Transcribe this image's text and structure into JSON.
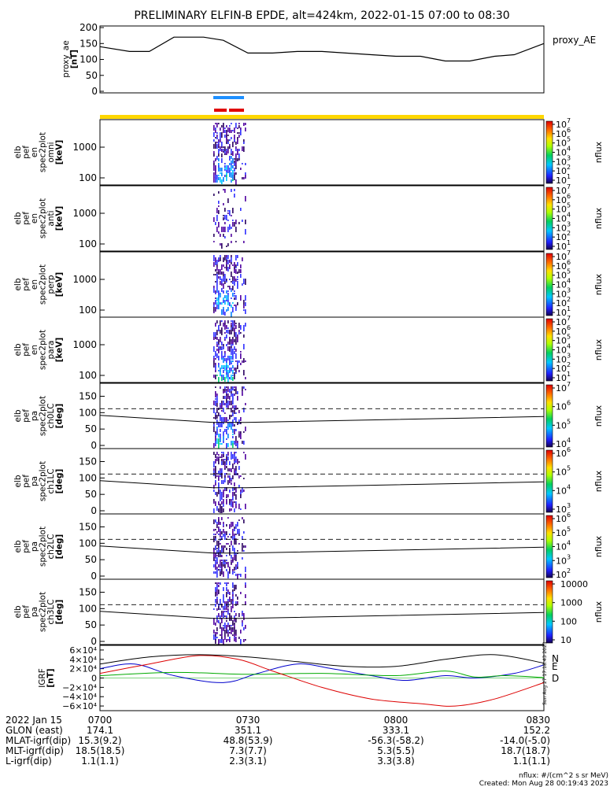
{
  "title": "PRELIMINARY ELFIN-B EPDE, alt=424km, 2022-01-15 07:00 to 08:30",
  "ae_panel": {
    "ylabel_lines": [
      "proxy_ae",
      "[nT]"
    ],
    "legend": "proxy_AE",
    "yticks": [
      "200",
      "150",
      "100",
      "50",
      "0"
    ]
  },
  "spec_panels": [
    {
      "ylabel_lines": [
        "elb",
        "pef",
        "en",
        "spec2plot",
        "omni",
        "[keV]"
      ],
      "yticks": [
        "1000",
        "100"
      ],
      "cbar_ticks": [
        "7",
        "6",
        "5",
        "4",
        "3",
        "2",
        "1"
      ]
    },
    {
      "ylabel_lines": [
        "elb",
        "pef",
        "en",
        "spec2plot",
        "anti",
        "[keV]"
      ],
      "yticks": [
        "1000",
        "100"
      ],
      "cbar_ticks": [
        "7",
        "6",
        "5",
        "4",
        "3",
        "2",
        "1"
      ]
    },
    {
      "ylabel_lines": [
        "elb",
        "pef",
        "en",
        "spec2plot",
        "perp",
        "[keV]"
      ],
      "yticks": [
        "1000",
        "100"
      ],
      "cbar_ticks": [
        "7",
        "6",
        "5",
        "4",
        "3",
        "2",
        "1"
      ]
    },
    {
      "ylabel_lines": [
        "elb",
        "pef",
        "en",
        "spec2plot",
        "para",
        "[keV]"
      ],
      "yticks": [
        "1000",
        "100"
      ],
      "cbar_ticks": [
        "7",
        "6",
        "5",
        "4",
        "3",
        "2",
        "1"
      ]
    }
  ],
  "pa_panels": [
    {
      "ylabel_lines": [
        "elb",
        "pef",
        "pa",
        "spec2plot",
        "ch0LC",
        "[deg]"
      ],
      "yticks": [
        "150",
        "100",
        "50",
        "0"
      ],
      "cbar_ticks": [
        "7",
        "6",
        "5",
        "4"
      ]
    },
    {
      "ylabel_lines": [
        "elb",
        "pef",
        "pa",
        "spec2plot",
        "ch1LC",
        "[deg]"
      ],
      "yticks": [
        "150",
        "100",
        "50",
        "0"
      ],
      "cbar_ticks": [
        "6",
        "5",
        "4",
        "3"
      ]
    },
    {
      "ylabel_lines": [
        "elb",
        "pef",
        "pa",
        "spec2plot",
        "ch2LC",
        "[deg]"
      ],
      "yticks": [
        "150",
        "100",
        "50",
        "0"
      ],
      "cbar_ticks": [
        "6",
        "5",
        "4",
        "3",
        "2"
      ]
    },
    {
      "ylabel_lines": [
        "elb",
        "pef",
        "pa",
        "spec2plot",
        "ch3LC",
        "[deg]"
      ],
      "yticks": [
        "150",
        "100",
        "50",
        "0"
      ],
      "cbar_ticks_plain": [
        "10000",
        "1000",
        "100",
        "10"
      ]
    }
  ],
  "cbar_label": "nflux",
  "igrf_panel": {
    "ylabel_lines": [
      "IGRF",
      "[nT]"
    ],
    "yticks": [
      "6×10⁴",
      "4×10⁴",
      "2×10⁴",
      "0",
      "−2×10⁴",
      "−4×10⁴",
      "−6×10⁴"
    ],
    "legend": [
      "N",
      "E",
      "D"
    ],
    "side_stamp": "Sun Aug 27 17:18:43 2023"
  },
  "footer": {
    "rows": [
      [
        "2022 Jan 15",
        "0700",
        "0730",
        "0800",
        "0830"
      ],
      [
        "GLON (east)",
        "174.1",
        "351.1",
        "333.1",
        "152.2"
      ],
      [
        "MLAT-igrf(dip)",
        "15.3(9.2)",
        "48.8(53.9)",
        "-56.3(-58.2)",
        "-14.0(-5.0)"
      ],
      [
        "MLT-igrf(dip)",
        "18.5(18.5)",
        "7.3(7.7)",
        "5.3(5.5)",
        "18.7(18.7)"
      ],
      [
        "L-igrf(dip)",
        "1.1(1.1)",
        "2.3(3.1)",
        "3.3(3.8)",
        "1.1(1.1)"
      ]
    ],
    "units": "nflux: #/(cm^2 s sr MeV)",
    "created": "Created: Mon Aug 28 00:19:43 2023"
  },
  "colors": {
    "ae_line": "#000000",
    "bar_blue": "#1e90ff",
    "bar_red": "#e00000",
    "bar_yellow": "#ffd700",
    "igrf_n": "#0000cc",
    "igrf_e": "#00aa00",
    "igrf_d": "#dd0000",
    "igrf_total": "#000000"
  },
  "chart_data": [
    {
      "type": "line",
      "title": "PRELIMINARY ELFIN-B EPDE, alt=424km, 2022-01-15 07:00 to 08:30",
      "ylabel": "proxy_ae [nT]",
      "ylim": [
        0,
        200
      ],
      "xlim": [
        "07:00",
        "08:30"
      ],
      "series": [
        {
          "name": "proxy_AE",
          "x": [
            "07:00",
            "07:06",
            "07:10",
            "07:15",
            "07:21",
            "07:25",
            "07:30",
            "07:35",
            "07:40",
            "07:45",
            "07:55",
            "08:00",
            "08:05",
            "08:10",
            "08:15",
            "08:20",
            "08:24",
            "08:30"
          ],
          "values": [
            140,
            125,
            125,
            170,
            170,
            160,
            120,
            120,
            125,
            125,
            115,
            110,
            110,
            95,
            95,
            110,
            115,
            150
          ]
        }
      ]
    },
    {
      "type": "line",
      "ylabel": "IGRF [nT]",
      "ylim": [
        -70000,
        70000
      ],
      "xlim": [
        "07:00",
        "08:30"
      ],
      "series": [
        {
          "name": "N",
          "x": [
            "07:00",
            "07:07",
            "07:15",
            "07:25",
            "07:32",
            "07:40",
            "07:47",
            "07:55",
            "08:02",
            "08:10",
            "08:16",
            "08:24",
            "08:30"
          ],
          "values": [
            20000,
            30000,
            5000,
            -10000,
            10000,
            30000,
            20000,
            5000,
            -5000,
            5000,
            0,
            10000,
            28000
          ]
        },
        {
          "name": "E",
          "x": [
            "07:00",
            "07:15",
            "07:30",
            "07:45",
            "08:00",
            "08:10",
            "08:16",
            "08:22",
            "08:30"
          ],
          "values": [
            5000,
            12000,
            8000,
            10000,
            5000,
            15000,
            2000,
            5000,
            1000
          ]
        },
        {
          "name": "D",
          "x": [
            "07:00",
            "07:10",
            "07:20",
            "07:28",
            "07:35",
            "07:45",
            "07:55",
            "08:05",
            "08:12",
            "08:20",
            "08:30"
          ],
          "values": [
            10000,
            30000,
            48000,
            40000,
            15000,
            -20000,
            -45000,
            -55000,
            -60000,
            -45000,
            -10000
          ]
        },
        {
          "x": [
            "07:00",
            "07:10",
            "07:20",
            "07:30",
            "07:40",
            "07:50",
            "08:00",
            "08:10",
            "08:20",
            "08:30"
          ],
          "values": [
            30000,
            45000,
            50000,
            45000,
            35000,
            25000,
            25000,
            40000,
            50000,
            32000
          ]
        }
      ]
    }
  ]
}
